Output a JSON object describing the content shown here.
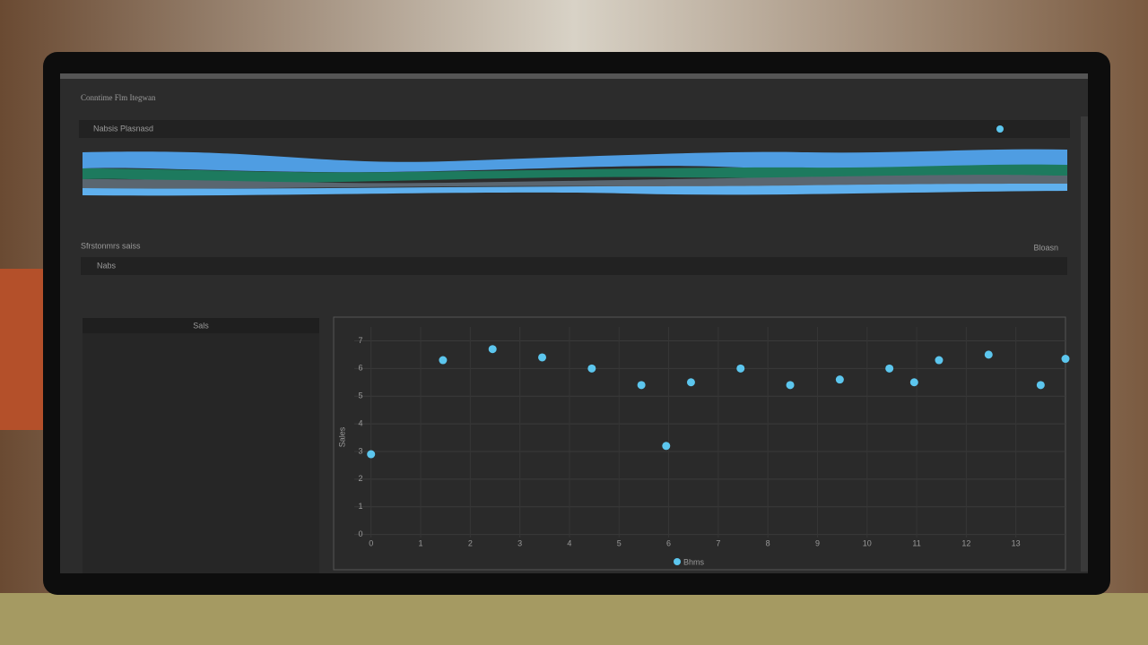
{
  "header": {
    "title": "Conntime Flm Itegwan"
  },
  "stream_panel": {
    "label": "Nabsis Plasnasd"
  },
  "section": {
    "label": "Sfrstonmrs saiss",
    "right": "Bloasn",
    "sub": "Nabs"
  },
  "side_panel": {
    "label": "Sals"
  },
  "chart_data": {
    "type": "scatter",
    "ylabel": "Sales",
    "xlim": [
      -0.7,
      14
    ],
    "ylim": [
      -0.5,
      7.5
    ],
    "xticks": [
      0,
      1,
      2,
      3,
      4,
      5,
      6,
      7,
      8,
      9,
      10,
      11,
      12,
      13
    ],
    "yticks": [
      0,
      1,
      2,
      3,
      4,
      5,
      6,
      7
    ],
    "grid": true,
    "series": [
      {
        "name": "Bhms",
        "color": "#5cc6ee",
        "x": [
          0,
          1.45,
          2.45,
          3.45,
          4.45,
          5.45,
          5.95,
          6.45,
          7.45,
          8.45,
          9.45,
          10.45,
          10.95,
          11.45,
          12.45,
          13.5,
          14
        ],
        "values": [
          2.9,
          6.3,
          6.7,
          6.4,
          6.0,
          5.4,
          3.2,
          5.5,
          6.0,
          5.4,
          5.6,
          6.0,
          5.5,
          6.3,
          6.5,
          5.4,
          6.35
        ]
      }
    ]
  }
}
